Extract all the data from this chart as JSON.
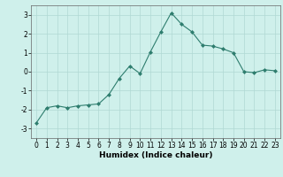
{
  "x": [
    0,
    1,
    2,
    3,
    4,
    5,
    6,
    7,
    8,
    9,
    10,
    11,
    12,
    13,
    14,
    15,
    16,
    17,
    18,
    19,
    20,
    21,
    22,
    23
  ],
  "y": [
    -2.7,
    -1.9,
    -1.8,
    -1.9,
    -1.8,
    -1.75,
    -1.7,
    -1.2,
    -0.35,
    0.3,
    -0.1,
    1.05,
    2.1,
    3.1,
    2.5,
    2.1,
    1.4,
    1.35,
    1.2,
    1.0,
    0.0,
    -0.05,
    0.1,
    0.05
  ],
  "line_color": "#2e7d6e",
  "marker": "D",
  "marker_size": 2.0,
  "linewidth": 0.8,
  "xlabel": "Humidex (Indice chaleur)",
  "xlim": [
    -0.5,
    23.5
  ],
  "ylim": [
    -3.5,
    3.5
  ],
  "yticks": [
    -3,
    -2,
    -1,
    0,
    1,
    2,
    3
  ],
  "xticks": [
    0,
    1,
    2,
    3,
    4,
    5,
    6,
    7,
    8,
    9,
    10,
    11,
    12,
    13,
    14,
    15,
    16,
    17,
    18,
    19,
    20,
    21,
    22,
    23
  ],
  "background_color": "#cff0eb",
  "grid_color": "#b0d8d4",
  "tick_fontsize": 5.5,
  "xlabel_fontsize": 6.5,
  "xlabel_fontweight": "bold"
}
